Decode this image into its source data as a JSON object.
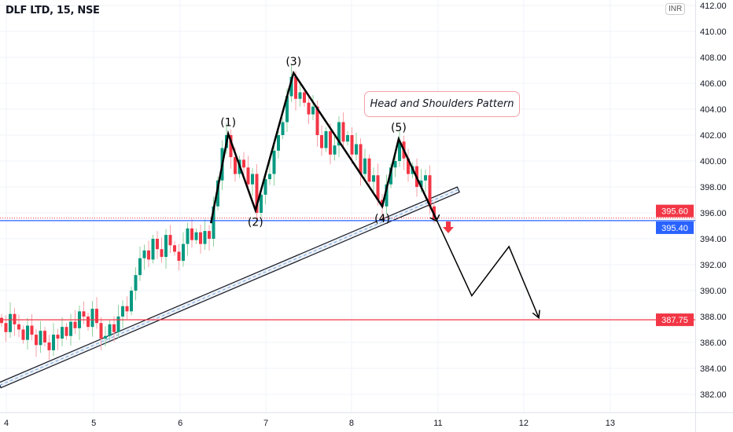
{
  "header": {
    "title": "DLF LTD, 15, NSE",
    "currency": "INR"
  },
  "annotation": {
    "text": "Head and Shoulders Pattern",
    "border_color": "#f4a0a8"
  },
  "colors": {
    "up": "#089981",
    "down": "#f23645",
    "up_wick": "#8fd19e",
    "down_wick": "#f7a1a8",
    "blue_line": "#2962ff",
    "red_line": "#f23645",
    "grid": "#f0f3fa"
  },
  "chart_data": {
    "type": "candlestick",
    "title": "DLF LTD, 15, NSE",
    "ylim": [
      381,
      412
    ],
    "y_ticks": [
      "382.00",
      "384.00",
      "386.00",
      "388.00",
      "390.00",
      "392.00",
      "394.00",
      "396.00",
      "398.00",
      "400.00",
      "402.00",
      "404.00",
      "406.00",
      "408.00",
      "410.00",
      "412.00"
    ],
    "x_ticks": [
      {
        "label": "4",
        "bar": 1.1
      },
      {
        "label": "5",
        "bar": 21.3
      },
      {
        "label": "6",
        "bar": 41.3
      },
      {
        "label": "7",
        "bar": 61.1
      },
      {
        "label": "8",
        "bar": 80.9
      },
      {
        "label": "11",
        "bar": 100.9
      },
      {
        "label": "12",
        "bar": 120.7
      },
      {
        "label": "13",
        "bar": 140.7
      }
    ],
    "closes": [
      387.5,
      386.8,
      388.2,
      387.4,
      387.0,
      386.2,
      387.3,
      386.6,
      385.8,
      386.9,
      386.0,
      385.4,
      386.6,
      386.3,
      387.2,
      386.5,
      387.6,
      387.1,
      388.4,
      388.0,
      387.2,
      388.6,
      387.5,
      386.3,
      386.5,
      387.4,
      386.8,
      388.0,
      388.8,
      388.4,
      390.0,
      391.2,
      392.5,
      393.1,
      392.4,
      394.0,
      393.2,
      392.6,
      394.3,
      393.5,
      393.0,
      392.3,
      393.6,
      394.8,
      393.9,
      394.5,
      393.6,
      394.6,
      394.0,
      396.5,
      398.5,
      401.0,
      402.0,
      400.3,
      399.0,
      400.1,
      399.5,
      398.2,
      399.0,
      396.0,
      397.4,
      398.6,
      399.0,
      400.8,
      402.0,
      403.0,
      405.0,
      406.5,
      404.8,
      405.3,
      404.5,
      403.6,
      404.2,
      402.0,
      401.0,
      402.3,
      400.5,
      401.2,
      403.0,
      401.5,
      402.0,
      400.5,
      401.3,
      399.0,
      400.2,
      398.4,
      398.9,
      397.0,
      396.5,
      398.2,
      399.5,
      400.0,
      401.5,
      400.2,
      399.0,
      399.6,
      398.0,
      398.5,
      398.9,
      396.5,
      395.5
    ],
    "price_lines": [
      {
        "label": "395.60",
        "price": 395.6,
        "color": "#f23645",
        "style": "dotted"
      },
      {
        "label": "395.40",
        "price": 395.4,
        "color": "#2962ff",
        "style": "solid"
      },
      {
        "label": "387.75",
        "price": 387.75,
        "color": "#f23645",
        "style": "solid"
      }
    ],
    "pattern": {
      "points": [
        [
          48.4,
          395.2
        ],
        [
          52.4,
          402.1
        ],
        [
          58.7,
          396.2
        ],
        [
          67.5,
          406.8
        ],
        [
          88,
          396.5
        ],
        [
          91.8,
          401.7
        ],
        [
          100.5,
          395.5
        ]
      ],
      "labels": [
        {
          "text": "(1)",
          "bar": 52.4,
          "price": 402.1,
          "pos": "above"
        },
        {
          "text": "(2)",
          "bar": 58.7,
          "price": 396.2,
          "pos": "below"
        },
        {
          "text": "(3)",
          "bar": 67.5,
          "price": 406.8,
          "pos": "above"
        },
        {
          "text": "(4)",
          "bar": 88,
          "price": 396.5,
          "pos": "below"
        },
        {
          "text": "(5)",
          "bar": 91.8,
          "price": 401.7,
          "pos": "above"
        }
      ]
    },
    "projection": [
      [
        100.5,
        395.5
      ],
      [
        108.7,
        389.6
      ],
      [
        117.3,
        393.4
      ],
      [
        124.2,
        387.9
      ]
    ],
    "trendline": [
      [
        -0.4,
        382.7
      ],
      [
        105.6,
        397.8
      ]
    ],
    "signal": "down-arrow"
  }
}
